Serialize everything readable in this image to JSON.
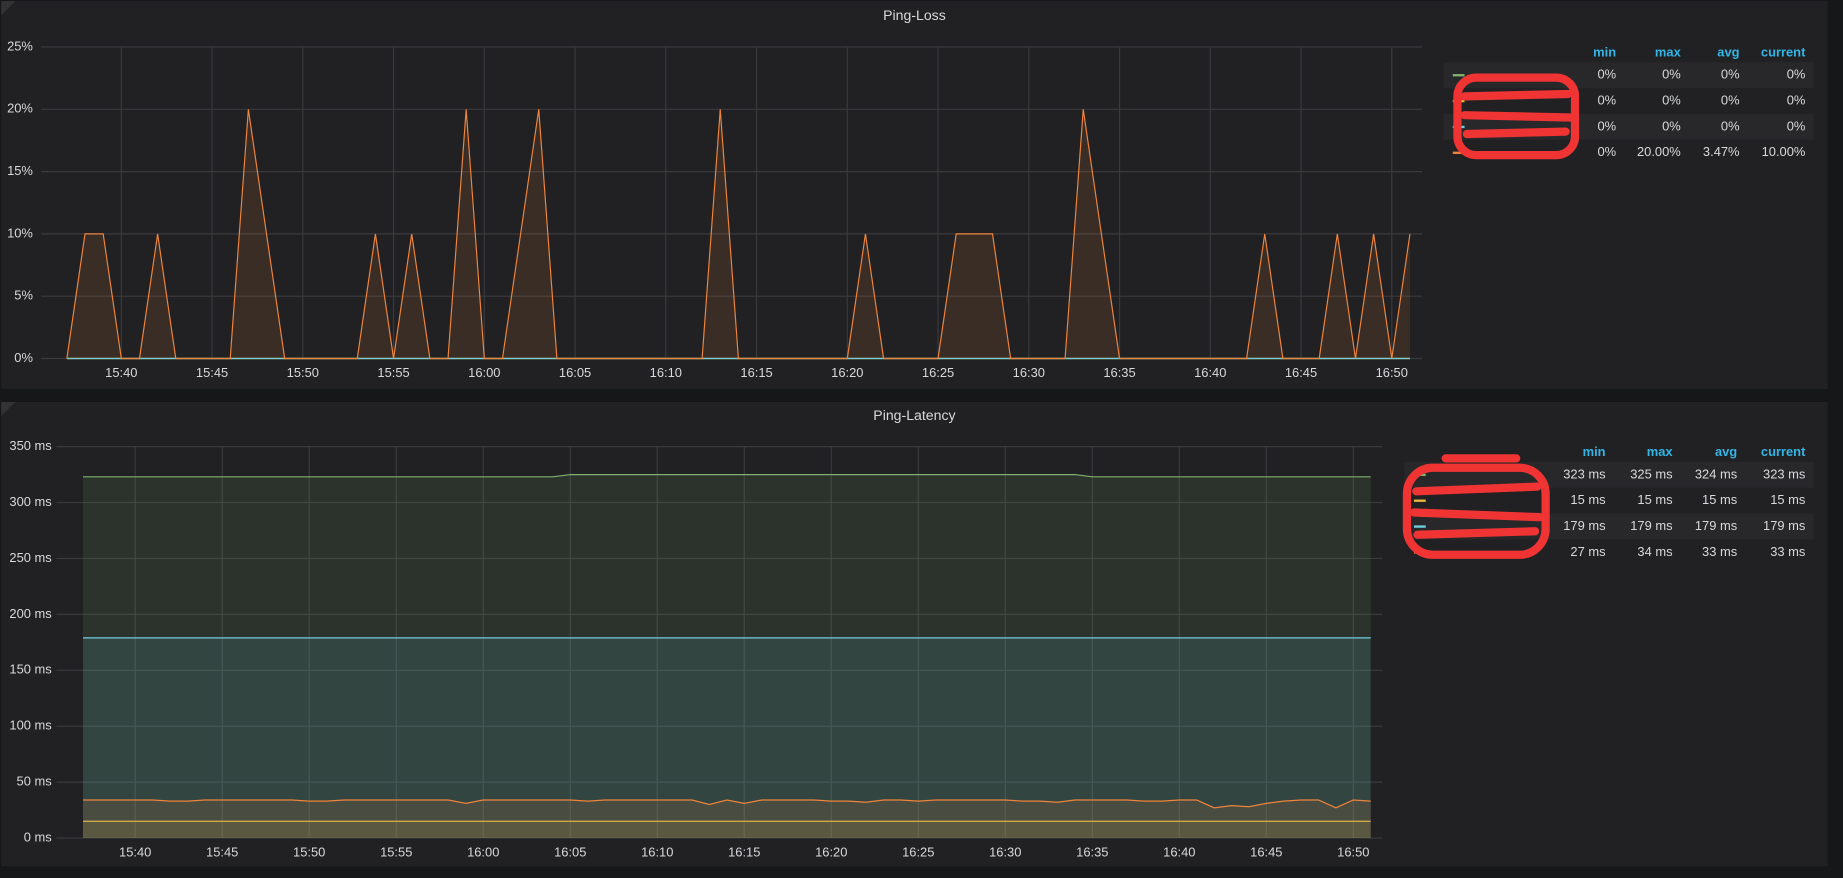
{
  "chart_data": [
    {
      "type": "line",
      "title": "Ping-Loss",
      "x": [
        "15:37",
        "15:38",
        "15:39",
        "15:40",
        "15:41",
        "15:42",
        "15:43",
        "15:44",
        "15:45",
        "15:46",
        "15:47",
        "15:48",
        "15:49",
        "15:50",
        "15:51",
        "15:52",
        "15:53",
        "15:54",
        "15:55",
        "15:56",
        "15:57",
        "15:58",
        "15:59",
        "16:00",
        "16:01",
        "16:02",
        "16:03",
        "16:04",
        "16:05",
        "16:06",
        "16:07",
        "16:08",
        "16:09",
        "16:10",
        "16:11",
        "16:12",
        "16:13",
        "16:14",
        "16:15",
        "16:16",
        "16:17",
        "16:18",
        "16:19",
        "16:20",
        "16:21",
        "16:22",
        "16:23",
        "16:24",
        "16:25",
        "16:26",
        "16:27",
        "16:28",
        "16:29",
        "16:30",
        "16:31",
        "16:32",
        "16:33",
        "16:34",
        "16:35",
        "16:36",
        "16:37",
        "16:38",
        "16:39",
        "16:40",
        "16:41",
        "16:42",
        "16:43",
        "16:44",
        "16:45",
        "16:46",
        "16:47",
        "16:48",
        "16:49",
        "16:50",
        "16:51"
      ],
      "series": [
        {
          "color": "#7eb26d",
          "values": [
            0,
            0,
            0,
            0,
            0,
            0,
            0,
            0,
            0,
            0,
            0,
            0,
            0,
            0,
            0,
            0,
            0,
            0,
            0,
            0,
            0,
            0,
            0,
            0,
            0,
            0,
            0,
            0,
            0,
            0,
            0,
            0,
            0,
            0,
            0,
            0,
            0,
            0,
            0,
            0,
            0,
            0,
            0,
            0,
            0,
            0,
            0,
            0,
            0,
            0,
            0,
            0,
            0,
            0,
            0,
            0,
            0,
            0,
            0,
            0,
            0,
            0,
            0,
            0,
            0,
            0,
            0,
            0,
            0,
            0,
            0,
            0,
            0,
            0,
            0
          ]
        },
        {
          "color": "#eab839",
          "values": [
            0,
            0,
            0,
            0,
            0,
            0,
            0,
            0,
            0,
            0,
            0,
            0,
            0,
            0,
            0,
            0,
            0,
            0,
            0,
            0,
            0,
            0,
            0,
            0,
            0,
            0,
            0,
            0,
            0,
            0,
            0,
            0,
            0,
            0,
            0,
            0,
            0,
            0,
            0,
            0,
            0,
            0,
            0,
            0,
            0,
            0,
            0,
            0,
            0,
            0,
            0,
            0,
            0,
            0,
            0,
            0,
            0,
            0,
            0,
            0,
            0,
            0,
            0,
            0,
            0,
            0,
            0,
            0,
            0,
            0,
            0,
            0,
            0,
            0,
            0
          ]
        },
        {
          "color": "#6ed0e0",
          "values": [
            0,
            0,
            0,
            0,
            0,
            0,
            0,
            0,
            0,
            0,
            0,
            0,
            0,
            0,
            0,
            0,
            0,
            0,
            0,
            0,
            0,
            0,
            0,
            0,
            0,
            0,
            0,
            0,
            0,
            0,
            0,
            0,
            0,
            0,
            0,
            0,
            0,
            0,
            0,
            0,
            0,
            0,
            0,
            0,
            0,
            0,
            0,
            0,
            0,
            0,
            0,
            0,
            0,
            0,
            0,
            0,
            0,
            0,
            0,
            0,
            0,
            0,
            0,
            0,
            0,
            0,
            0,
            0,
            0,
            0,
            0,
            0,
            0,
            0,
            0
          ]
        },
        {
          "color": "#ef843c",
          "values": [
            0,
            10,
            10,
            0,
            0,
            10,
            0,
            0,
            0,
            0,
            20,
            10,
            0,
            0,
            0,
            0,
            0,
            10,
            0,
            10,
            0,
            0,
            20,
            0,
            0,
            10,
            20,
            0,
            0,
            0,
            0,
            0,
            0,
            0,
            0,
            0,
            20,
            0,
            0,
            0,
            0,
            0,
            0,
            0,
            10,
            0,
            0,
            0,
            0,
            10,
            10,
            10,
            0,
            0,
            0,
            0,
            20,
            10,
            0,
            0,
            0,
            0,
            0,
            0,
            0,
            0,
            10,
            0,
            0,
            0,
            10,
            0,
            10,
            0,
            10
          ]
        }
      ],
      "xlim": [
        "15:35",
        "16:52"
      ],
      "xticks": [
        "15:40",
        "15:45",
        "15:50",
        "15:55",
        "16:00",
        "16:05",
        "16:10",
        "16:15",
        "16:20",
        "16:25",
        "16:30",
        "16:35",
        "16:40",
        "16:45",
        "16:50"
      ],
      "ylim": [
        0,
        25
      ],
      "yticks": [
        {
          "value": 0,
          "label": "0%"
        },
        {
          "value": 5,
          "label": "5%"
        },
        {
          "value": 10,
          "label": "10%"
        },
        {
          "value": 15,
          "label": "15%"
        },
        {
          "value": 20,
          "label": "20%"
        },
        {
          "value": 25,
          "label": "25%"
        }
      ],
      "grid": true,
      "legend": {
        "columns": [
          "min",
          "max",
          "avg",
          "current"
        ],
        "rows": [
          [
            "0%",
            "0%",
            "0%",
            "0%"
          ],
          [
            "0%",
            "0%",
            "0%",
            "0%"
          ],
          [
            "0%",
            "0%",
            "0%",
            "0%"
          ],
          [
            "0%",
            "20.00%",
            "3.47%",
            "10.00%"
          ]
        ]
      }
    },
    {
      "type": "line",
      "title": "Ping-Latency",
      "x": [
        "15:37",
        "15:38",
        "15:39",
        "15:40",
        "15:41",
        "15:42",
        "15:43",
        "15:44",
        "15:45",
        "15:46",
        "15:47",
        "15:48",
        "15:49",
        "15:50",
        "15:51",
        "15:52",
        "15:53",
        "15:54",
        "15:55",
        "15:56",
        "15:57",
        "15:58",
        "15:59",
        "16:00",
        "16:01",
        "16:02",
        "16:03",
        "16:04",
        "16:05",
        "16:06",
        "16:07",
        "16:08",
        "16:09",
        "16:10",
        "16:11",
        "16:12",
        "16:13",
        "16:14",
        "16:15",
        "16:16",
        "16:17",
        "16:18",
        "16:19",
        "16:20",
        "16:21",
        "16:22",
        "16:23",
        "16:24",
        "16:25",
        "16:26",
        "16:27",
        "16:28",
        "16:29",
        "16:30",
        "16:31",
        "16:32",
        "16:33",
        "16:34",
        "16:35",
        "16:36",
        "16:37",
        "16:38",
        "16:39",
        "16:40",
        "16:41",
        "16:42",
        "16:43",
        "16:44",
        "16:45",
        "16:46",
        "16:47",
        "16:48",
        "16:49",
        "16:50",
        "16:51"
      ],
      "series": [
        {
          "color": "#7eb26d",
          "values": [
            323,
            323,
            323,
            323,
            323,
            323,
            323,
            323,
            323,
            323,
            323,
            323,
            323,
            323,
            323,
            323,
            323,
            323,
            323,
            323,
            323,
            323,
            323,
            323,
            323,
            323,
            323,
            323,
            325,
            325,
            325,
            325,
            325,
            325,
            325,
            325,
            325,
            325,
            325,
            325,
            325,
            325,
            325,
            325,
            325,
            325,
            325,
            325,
            325,
            325,
            325,
            325,
            325,
            325,
            325,
            325,
            325,
            325,
            323,
            323,
            323,
            323,
            323,
            323,
            323,
            323,
            323,
            323,
            323,
            323,
            323,
            323,
            323,
            323,
            323
          ]
        },
        {
          "color": "#eab839",
          "values": [
            15,
            15,
            15,
            15,
            15,
            15,
            15,
            15,
            15,
            15,
            15,
            15,
            15,
            15,
            15,
            15,
            15,
            15,
            15,
            15,
            15,
            15,
            15,
            15,
            15,
            15,
            15,
            15,
            15,
            15,
            15,
            15,
            15,
            15,
            15,
            15,
            15,
            15,
            15,
            15,
            15,
            15,
            15,
            15,
            15,
            15,
            15,
            15,
            15,
            15,
            15,
            15,
            15,
            15,
            15,
            15,
            15,
            15,
            15,
            15,
            15,
            15,
            15,
            15,
            15,
            15,
            15,
            15,
            15,
            15,
            15,
            15,
            15,
            15,
            15
          ]
        },
        {
          "color": "#6ed0e0",
          "values": [
            179,
            179,
            179,
            179,
            179,
            179,
            179,
            179,
            179,
            179,
            179,
            179,
            179,
            179,
            179,
            179,
            179,
            179,
            179,
            179,
            179,
            179,
            179,
            179,
            179,
            179,
            179,
            179,
            179,
            179,
            179,
            179,
            179,
            179,
            179,
            179,
            179,
            179,
            179,
            179,
            179,
            179,
            179,
            179,
            179,
            179,
            179,
            179,
            179,
            179,
            179,
            179,
            179,
            179,
            179,
            179,
            179,
            179,
            179,
            179,
            179,
            179,
            179,
            179,
            179,
            179,
            179,
            179,
            179,
            179,
            179,
            179,
            179,
            179,
            179
          ]
        },
        {
          "color": "#ef843c",
          "values": [
            34,
            34,
            34,
            34,
            34,
            33,
            33,
            34,
            34,
            34,
            34,
            34,
            34,
            33,
            33,
            34,
            34,
            34,
            34,
            34,
            34,
            34,
            31,
            34,
            34,
            34,
            34,
            34,
            34,
            33,
            34,
            34,
            34,
            34,
            34,
            34,
            30,
            34,
            31,
            34,
            34,
            34,
            34,
            33,
            33,
            32,
            34,
            34,
            33,
            34,
            34,
            34,
            34,
            34,
            33,
            33,
            32,
            34,
            34,
            34,
            34,
            33,
            33,
            34,
            34,
            27,
            29,
            28,
            31,
            33,
            34,
            34,
            27,
            34,
            33
          ]
        }
      ],
      "xlim": [
        "15:35",
        "16:52"
      ],
      "xticks": [
        "15:40",
        "15:45",
        "15:50",
        "15:55",
        "16:00",
        "16:05",
        "16:10",
        "16:15",
        "16:20",
        "16:25",
        "16:30",
        "16:35",
        "16:40",
        "16:45",
        "16:50"
      ],
      "ylim": [
        0,
        350
      ],
      "yticks": [
        {
          "value": 0,
          "label": "0 ms"
        },
        {
          "value": 50,
          "label": "50 ms"
        },
        {
          "value": 100,
          "label": "100 ms"
        },
        {
          "value": 150,
          "label": "150 ms"
        },
        {
          "value": 200,
          "label": "200 ms"
        },
        {
          "value": 250,
          "label": "250 ms"
        },
        {
          "value": 300,
          "label": "300 ms"
        },
        {
          "value": 350,
          "label": "350 ms"
        }
      ],
      "grid": true,
      "legend": {
        "columns": [
          "min",
          "max",
          "avg",
          "current"
        ],
        "rows": [
          [
            "323 ms",
            "325 ms",
            "324 ms",
            "323 ms"
          ],
          [
            "15 ms",
            "15 ms",
            "15 ms",
            "15 ms"
          ],
          [
            "179 ms",
            "179 ms",
            "179 ms",
            "179 ms"
          ],
          [
            "27 ms",
            "34 ms",
            "33 ms",
            "33 ms"
          ]
        ]
      }
    }
  ]
}
